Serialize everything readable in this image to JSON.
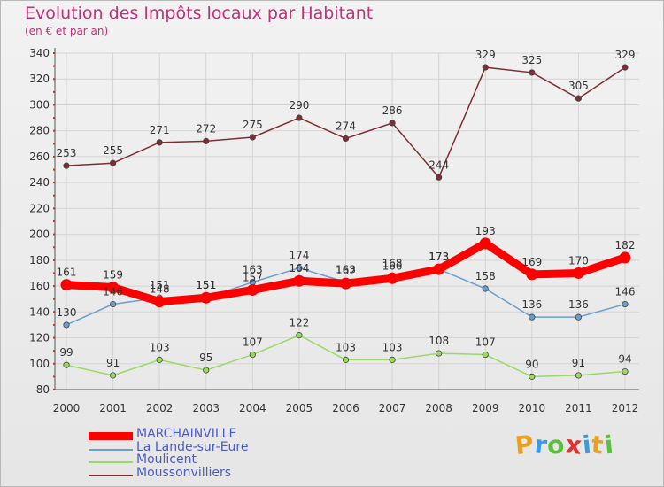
{
  "header": {
    "title": "Evolution des Impôts locaux par Habitant",
    "subtitle": "(en € et par an)"
  },
  "logo": {
    "letters": [
      "P",
      "r",
      "o",
      "x",
      "i",
      "t",
      "i"
    ],
    "colors": [
      "#e8a020",
      "#3b9be0",
      "#5cc03a",
      "#e03030",
      "#3b9be0",
      "#e8a020",
      "#5cc03a"
    ]
  },
  "chart_data": {
    "type": "line",
    "title": "Evolution des Impôts locaux par Habitant",
    "subtitle": "(en € et par an)",
    "xlabel": "",
    "ylabel": "",
    "x": [
      "2000",
      "2001",
      "2002",
      "2003",
      "2004",
      "2005",
      "2006",
      "2007",
      "2008",
      "2009",
      "2010",
      "2011",
      "2012"
    ],
    "ylim": [
      80,
      340
    ],
    "yticks": [
      80,
      100,
      120,
      140,
      160,
      180,
      200,
      220,
      240,
      260,
      280,
      300,
      320,
      340
    ],
    "grid": true,
    "legend_position": "bottom-left",
    "series": [
      {
        "name": "MARCHAINVILLE",
        "color": "#ff0000",
        "emphasis": true,
        "values": [
          161,
          159,
          148,
          151,
          157,
          164,
          162,
          166,
          173,
          193,
          169,
          170,
          182
        ],
        "labels": [
          "161",
          "159",
          "148",
          "151",
          "157",
          "164",
          "162",
          "166",
          "173",
          "193",
          "169",
          "170",
          "182"
        ]
      },
      {
        "name": "La Lande-sur-Eure",
        "color": "#6a9ed0",
        "emphasis": false,
        "values": [
          130,
          146,
          151,
          151,
          163,
          174,
          163,
          168,
          173,
          158,
          136,
          136,
          146
        ],
        "labels": [
          "130",
          "146",
          "151",
          "151",
          "163",
          "174",
          "163",
          "168",
          "173",
          "158",
          "136",
          "136",
          "146"
        ]
      },
      {
        "name": "Moulicent",
        "color": "#99d964",
        "emphasis": false,
        "values": [
          99,
          91,
          103,
          95,
          107,
          122,
          103,
          103,
          108,
          107,
          90,
          91,
          94
        ],
        "labels": [
          "99",
          "91",
          "103",
          "95",
          "107",
          "122",
          "103",
          "103",
          "108",
          "107",
          "90",
          "91",
          "94"
        ]
      },
      {
        "name": "Moussonvilliers",
        "color": "#7e2d33",
        "emphasis": false,
        "values": [
          253,
          255,
          271,
          272,
          275,
          290,
          274,
          286,
          244,
          329,
          325,
          305,
          329
        ],
        "labels": [
          "253",
          "255",
          "271",
          "272",
          "275",
          "290",
          "274",
          "286",
          "244",
          "329",
          "325",
          "305",
          "329"
        ]
      }
    ]
  }
}
